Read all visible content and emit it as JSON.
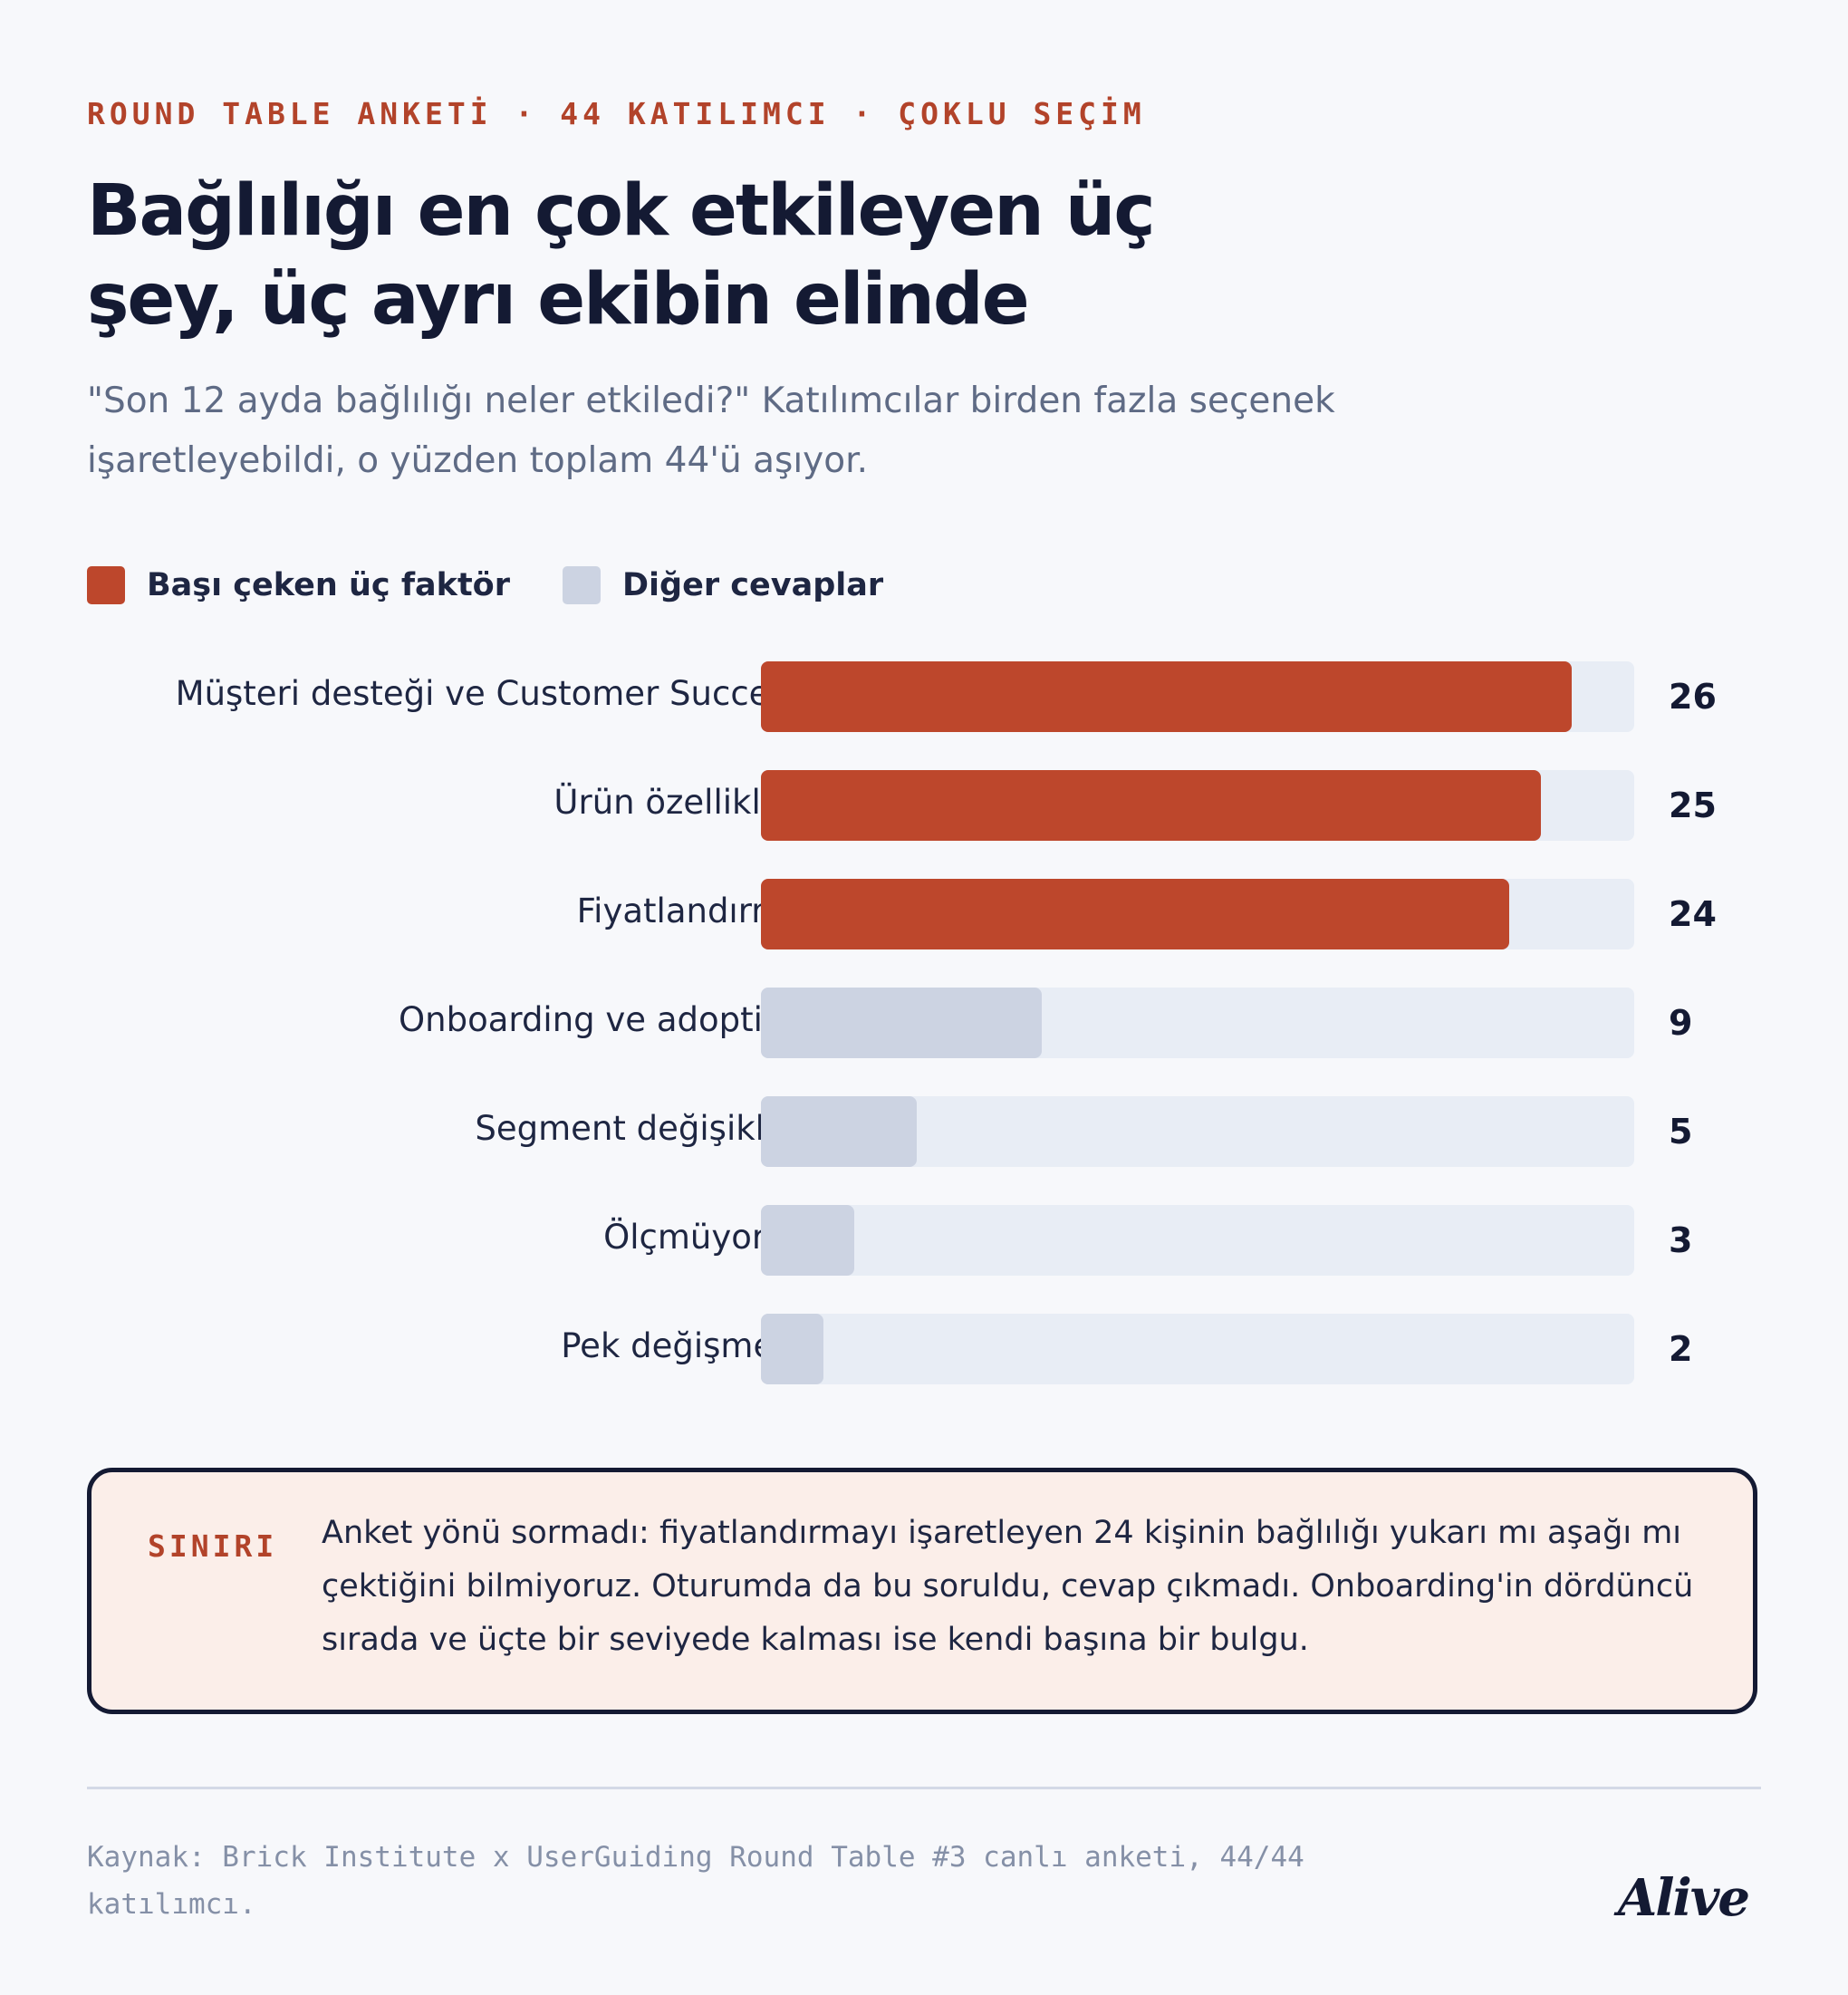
{
  "header": {
    "kicker": "ROUND TABLE ANKETİ · 44 KATILIMCI · ÇOKLU SEÇİM",
    "title": "Bağlılığı en çok etkileyen üç şey, üç ayrı ekibin elinde",
    "subtitle": "\"Son 12 ayda bağlılığı neler etkiledi?\" Katılımcılar birden fazla seçenek işaretleyebildi, o yüzden toplam 44'ü aşıyor."
  },
  "legend": [
    {
      "label": "Başı çeken üç faktör",
      "color": "#bd472c"
    },
    {
      "label": "Diğer cevaplar",
      "color": "#ccd3e2"
    }
  ],
  "chart_data": {
    "type": "bar",
    "orientation": "horizontal",
    "categories": [
      "Müşteri desteği ve Customer Success",
      "Ürün özellikleri",
      "Fiyatlandırma",
      "Onboarding ve adoption",
      "Segment değişikliği",
      "Ölçmüyoruz",
      "Pek değişmedi"
    ],
    "values": [
      26,
      25,
      24,
      9,
      5,
      3,
      2
    ],
    "groups": [
      "Başı çeken üç faktör",
      "Başı çeken üç faktör",
      "Başı çeken üç faktör",
      "Diğer cevaplar",
      "Diğer cevaplar",
      "Diğer cevaplar",
      "Diğer cevaplar"
    ],
    "xlim": [
      0,
      28
    ],
    "grid": false,
    "legend_position": "top-left"
  },
  "note": {
    "tag": "SINIRI",
    "text": "Anket yönü sormadı: fiyatlandırmayı işaretleyen 24 kişinin bağlılığı yukarı mı aşağı mı çektiğini bilmiyoruz. Oturumda da bu soruldu, cevap çıkmadı. Onboarding'in dördüncü sırada ve üçte bir seviyede kalması ise kendi başına bir bulgu."
  },
  "footer": {
    "source": "Kaynak: Brick Institute x UserGuiding Round Table #3 canlı anketi, 44/44 katılımcı.",
    "logo": "Alive"
  }
}
